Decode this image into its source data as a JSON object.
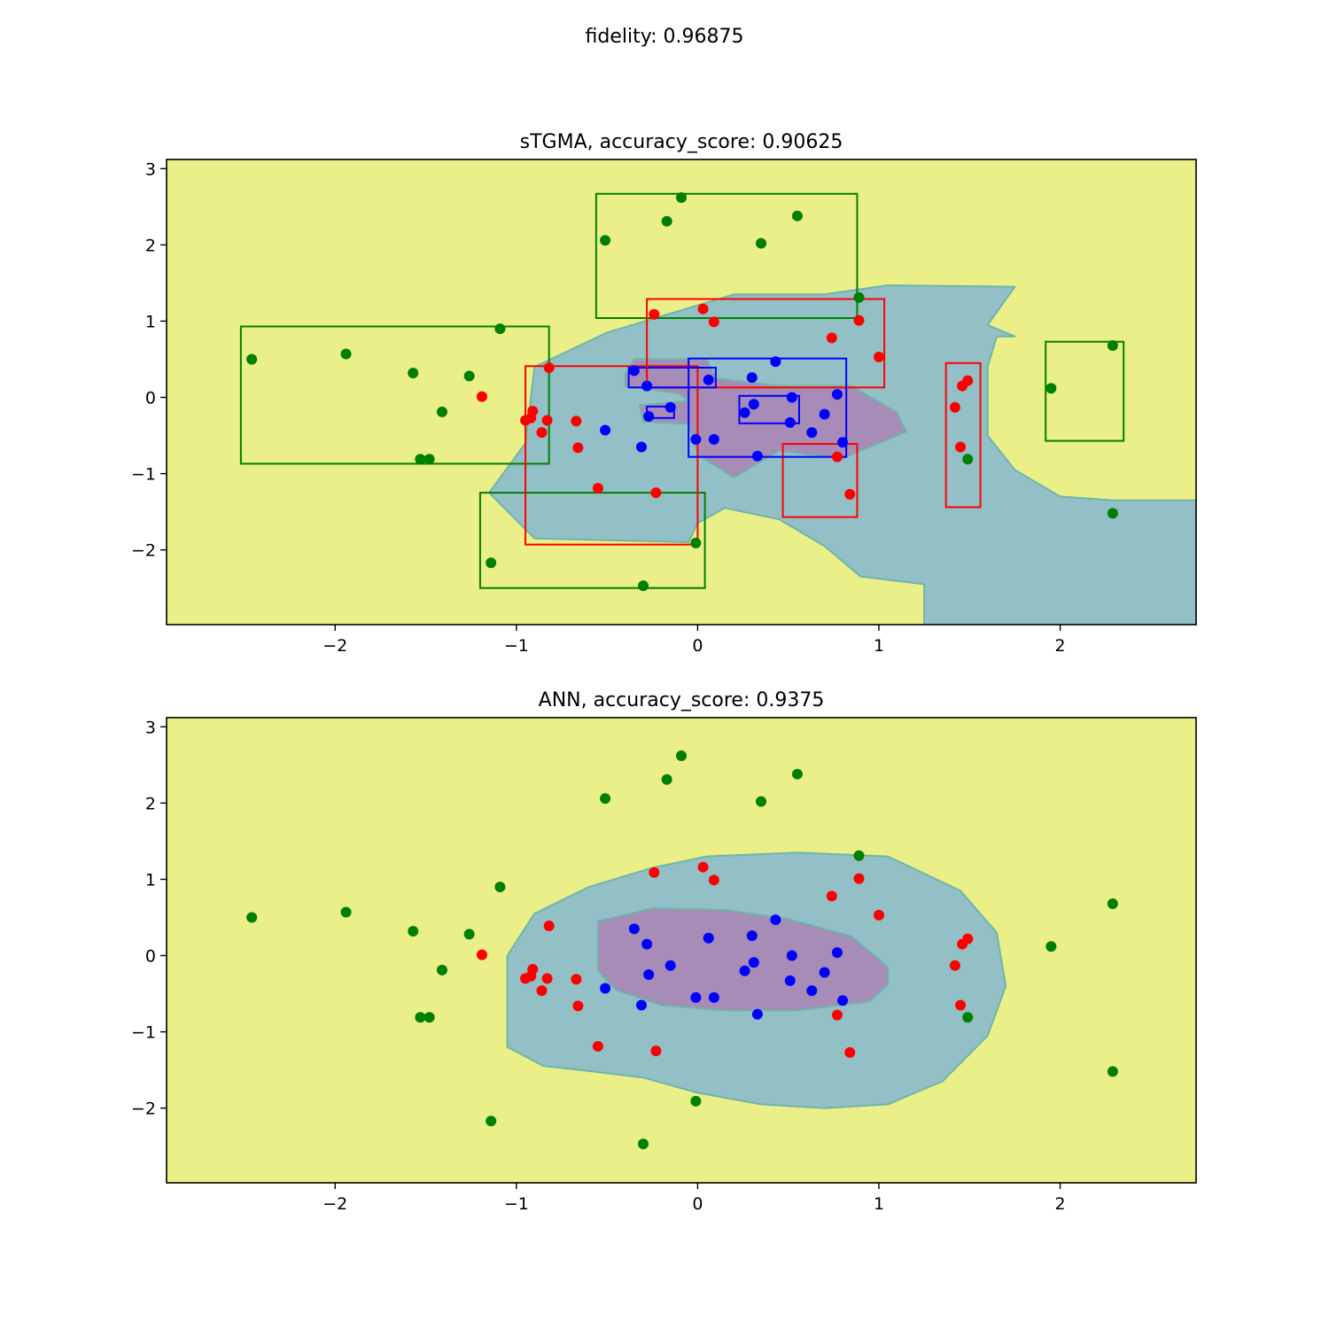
{
  "suptitle": "fidelity: 0.96875",
  "colors": {
    "yellow_region": "#ebef88",
    "teal_region": "#93c0c6",
    "purple_region": "#a68cb6",
    "class_inner": "#0000ff",
    "class_middle": "#ff0000",
    "class_outer": "#008000"
  },
  "chart_data": [
    {
      "type": "scatter",
      "title": "sTGMA, accuracy_score: 0.90625",
      "xlim": [
        -2.93,
        2.75
      ],
      "ylim": [
        -2.98,
        3.12
      ],
      "xticks": [
        -2,
        -1,
        0,
        1,
        2
      ],
      "yticks": [
        -2,
        -1,
        0,
        1,
        2,
        3
      ],
      "xtick_labels": [
        "−2",
        "−1",
        "0",
        "1",
        "2"
      ],
      "ytick_labels": [
        "−2",
        "−1",
        "0",
        "1",
        "2",
        "3"
      ],
      "grid": false,
      "background_region": "yellow_region",
      "regions": [
        {
          "name": "teal-region",
          "color": "teal_region",
          "points": [
            [
              -1.15,
              -1.25
            ],
            [
              -0.9,
              -1.85
            ],
            [
              -0.05,
              -1.9
            ],
            [
              0.0,
              -1.65
            ],
            [
              0.15,
              -1.45
            ],
            [
              0.45,
              -1.6
            ],
            [
              0.7,
              -1.95
            ],
            [
              0.9,
              -2.35
            ],
            [
              1.25,
              -2.45
            ],
            [
              1.25,
              -2.98
            ],
            [
              2.75,
              -2.98
            ],
            [
              2.75,
              -1.35
            ],
            [
              2.3,
              -1.35
            ],
            [
              2.0,
              -1.3
            ],
            [
              1.75,
              -0.95
            ],
            [
              1.6,
              -0.5
            ],
            [
              1.6,
              0.4
            ],
            [
              1.65,
              0.8
            ],
            [
              1.75,
              0.8
            ],
            [
              1.6,
              0.95
            ],
            [
              1.75,
              1.45
            ],
            [
              1.05,
              1.47
            ],
            [
              0.7,
              1.35
            ],
            [
              0.2,
              1.35
            ],
            [
              -0.5,
              0.85
            ],
            [
              -0.9,
              0.4
            ],
            [
              -0.95,
              -0.6
            ]
          ]
        },
        {
          "name": "purple-region",
          "color": "purple_region",
          "points": [
            [
              -0.4,
              0.3
            ],
            [
              -0.35,
              0.5
            ],
            [
              0.05,
              0.5
            ],
            [
              0.1,
              0.25
            ],
            [
              0.45,
              0.15
            ],
            [
              0.85,
              0.15
            ],
            [
              1.1,
              -0.2
            ],
            [
              1.15,
              -0.45
            ],
            [
              0.8,
              -0.8
            ],
            [
              0.45,
              -0.7
            ],
            [
              0.2,
              -1.05
            ],
            [
              0.0,
              -0.75
            ],
            [
              -0.05,
              -0.35
            ],
            [
              -0.3,
              -0.32
            ],
            [
              -0.32,
              -0.1
            ],
            [
              -0.05,
              -0.05
            ],
            [
              -0.1,
              0.05
            ],
            [
              -0.4,
              0.15
            ]
          ]
        }
      ],
      "boxes": [
        {
          "class": "outer",
          "x0": -0.56,
          "x1": 0.88,
          "y0": 1.04,
          "y1": 2.67
        },
        {
          "class": "outer",
          "x0": -2.52,
          "x1": -0.82,
          "y0": -0.87,
          "y1": 0.93
        },
        {
          "class": "outer",
          "x0": -1.2,
          "x1": 0.04,
          "y0": -2.5,
          "y1": -1.25
        },
        {
          "class": "outer",
          "x0": 1.92,
          "x1": 2.35,
          "y0": -0.57,
          "y1": 0.73
        },
        {
          "class": "middle",
          "x0": -0.28,
          "x1": 1.03,
          "y0": 0.13,
          "y1": 1.29
        },
        {
          "class": "middle",
          "x0": -0.95,
          "x1": -0.0,
          "y0": -1.93,
          "y1": 0.41
        },
        {
          "class": "middle",
          "x0": 0.47,
          "x1": 0.88,
          "y0": -1.57,
          "y1": -0.61
        },
        {
          "class": "middle",
          "x0": 1.37,
          "x1": 1.56,
          "y0": -1.44,
          "y1": 0.45
        },
        {
          "class": "inner",
          "x0": -0.05,
          "x1": 0.82,
          "y0": -0.78,
          "y1": 0.51
        },
        {
          "class": "inner",
          "x0": -0.38,
          "x1": 0.1,
          "y0": 0.13,
          "y1": 0.39
        },
        {
          "class": "inner",
          "x0": 0.23,
          "x1": 0.56,
          "y0": -0.34,
          "y1": 0.02
        },
        {
          "class": "inner",
          "x0": -0.28,
          "x1": -0.13,
          "y0": -0.27,
          "y1": -0.12
        }
      ]
    },
    {
      "type": "scatter",
      "title": "ANN, accuracy_score: 0.9375",
      "xlim": [
        -2.93,
        2.75
      ],
      "ylim": [
        -2.98,
        3.12
      ],
      "xticks": [
        -2,
        -1,
        0,
        1,
        2
      ],
      "yticks": [
        -2,
        -1,
        0,
        1,
        2,
        3
      ],
      "xtick_labels": [
        "−2",
        "−1",
        "0",
        "1",
        "2"
      ],
      "ytick_labels": [
        "−2",
        "−1",
        "0",
        "1",
        "2",
        "3"
      ],
      "grid": false,
      "background_region": "yellow_region",
      "regions": [
        {
          "name": "teal-region",
          "color": "teal_region",
          "points": [
            [
              -1.05,
              -1.2
            ],
            [
              -0.85,
              -1.45
            ],
            [
              -0.65,
              -1.5
            ],
            [
              -0.3,
              -1.6
            ],
            [
              0.0,
              -1.8
            ],
            [
              0.35,
              -1.95
            ],
            [
              0.7,
              -2.0
            ],
            [
              1.05,
              -1.95
            ],
            [
              1.35,
              -1.65
            ],
            [
              1.6,
              -1.05
            ],
            [
              1.7,
              -0.4
            ],
            [
              1.65,
              0.3
            ],
            [
              1.45,
              0.85
            ],
            [
              1.05,
              1.3
            ],
            [
              0.55,
              1.35
            ],
            [
              0.05,
              1.3
            ],
            [
              -0.25,
              1.15
            ],
            [
              -0.6,
              0.9
            ],
            [
              -0.9,
              0.55
            ],
            [
              -1.05,
              0.0
            ]
          ]
        },
        {
          "name": "purple-region",
          "color": "purple_region",
          "points": [
            [
              -0.55,
              0.45
            ],
            [
              -0.25,
              0.62
            ],
            [
              0.15,
              0.6
            ],
            [
              0.5,
              0.48
            ],
            [
              0.85,
              0.25
            ],
            [
              1.05,
              -0.15
            ],
            [
              1.05,
              -0.38
            ],
            [
              0.95,
              -0.6
            ],
            [
              0.55,
              -0.72
            ],
            [
              0.15,
              -0.72
            ],
            [
              -0.2,
              -0.65
            ],
            [
              -0.45,
              -0.45
            ],
            [
              -0.55,
              -0.2
            ],
            [
              -0.55,
              0.1
            ]
          ]
        }
      ],
      "boxes": []
    }
  ],
  "points": {
    "inner": [
      [
        -0.35,
        0.35
      ],
      [
        -0.28,
        0.15
      ],
      [
        -0.15,
        -0.13
      ],
      [
        -0.27,
        -0.25
      ],
      [
        -0.51,
        -0.43
      ],
      [
        -0.31,
        -0.65
      ],
      [
        -0.01,
        -0.55
      ],
      [
        0.06,
        0.23
      ],
      [
        0.09,
        -0.55
      ],
      [
        0.26,
        -0.2
      ],
      [
        0.3,
        0.26
      ],
      [
        0.31,
        -0.09
      ],
      [
        0.33,
        -0.77
      ],
      [
        0.43,
        0.47
      ],
      [
        0.51,
        -0.33
      ],
      [
        0.52,
        0.0
      ],
      [
        0.63,
        -0.46
      ],
      [
        0.7,
        -0.22
      ],
      [
        0.77,
        0.04
      ],
      [
        0.8,
        -0.59
      ]
    ],
    "middle": [
      [
        -0.24,
        1.09
      ],
      [
        0.03,
        1.16
      ],
      [
        0.09,
        0.99
      ],
      [
        0.74,
        0.78
      ],
      [
        0.89,
        1.01
      ],
      [
        1.0,
        0.53
      ],
      [
        -0.82,
        0.39
      ],
      [
        -1.19,
        0.01
      ],
      [
        -0.91,
        -0.18
      ],
      [
        -0.92,
        -0.27
      ],
      [
        -0.95,
        -0.3
      ],
      [
        -0.83,
        -0.3
      ],
      [
        -0.86,
        -0.46
      ],
      [
        -0.67,
        -0.31
      ],
      [
        -0.66,
        -0.66
      ],
      [
        -0.55,
        -1.19
      ],
      [
        -0.23,
        -1.25
      ],
      [
        0.77,
        -0.78
      ],
      [
        0.84,
        -1.27
      ],
      [
        1.42,
        -0.13
      ],
      [
        1.46,
        0.15
      ],
      [
        1.49,
        0.22
      ],
      [
        1.45,
        -0.65
      ]
    ],
    "outer": [
      [
        -0.51,
        2.06
      ],
      [
        -0.17,
        2.31
      ],
      [
        -0.09,
        2.62
      ],
      [
        0.35,
        2.02
      ],
      [
        0.55,
        2.38
      ],
      [
        0.89,
        1.31
      ],
      [
        -2.46,
        0.5
      ],
      [
        -1.94,
        0.57
      ],
      [
        -1.57,
        0.32
      ],
      [
        -1.26,
        0.28
      ],
      [
        -1.09,
        0.9
      ],
      [
        -1.41,
        -0.19
      ],
      [
        -1.53,
        -0.81
      ],
      [
        -1.48,
        -0.81
      ],
      [
        -1.14,
        -2.17
      ],
      [
        -0.3,
        -2.47
      ],
      [
        -0.01,
        -1.91
      ],
      [
        1.95,
        0.12
      ],
      [
        2.29,
        0.68
      ],
      [
        2.29,
        -1.52
      ],
      [
        1.49,
        -0.81
      ]
    ]
  }
}
